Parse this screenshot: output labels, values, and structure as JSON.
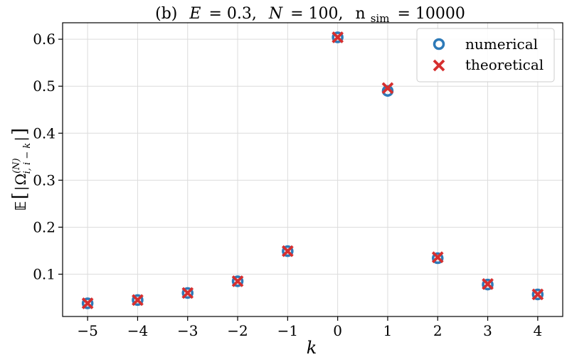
{
  "chart_data": {
    "type": "scatter",
    "title": "(b)  E = 0.3,  N = 100,  n_sim = 10000",
    "title_parts": {
      "prefix": "(b)",
      "E_symbol": "E",
      "E_value": "= 0.3,",
      "N_symbol": "N",
      "N_value": "= 100,",
      "nsim_base": "n",
      "nsim_sub": "sim",
      "nsim_value": "= 10000"
    },
    "xlabel": "k",
    "ylabel": "𝔼[ |Ω_{i, i−k}^{(N)}| ]",
    "xlim": [
      -5.5,
      4.5
    ],
    "ylim": [
      0.01,
      0.635
    ],
    "x_ticks": [
      -5,
      -4,
      -3,
      -2,
      -1,
      0,
      1,
      2,
      3,
      4
    ],
    "x_tick_labels": [
      "−5",
      "−4",
      "−3",
      "−2",
      "−1",
      "0",
      "1",
      "2",
      "3",
      "4"
    ],
    "y_ticks": [
      0.1,
      0.2,
      0.3,
      0.4,
      0.5,
      0.6
    ],
    "y_tick_labels": [
      "0.1",
      "0.2",
      "0.3",
      "0.4",
      "0.5",
      "0.6"
    ],
    "grid": true,
    "legend_position": "top-right",
    "series": [
      {
        "name": "numerical",
        "marker": "circle-open",
        "color": "#2e7ab8",
        "x": [
          -5,
          -4,
          -3,
          -2,
          -1,
          0,
          1,
          2,
          3,
          4
        ],
        "y": [
          0.038,
          0.045,
          0.06,
          0.085,
          0.149,
          0.604,
          0.49,
          0.134,
          0.078,
          0.057
        ]
      },
      {
        "name": "theoretical",
        "marker": "x",
        "color": "#d62f2f",
        "x": [
          -5,
          -4,
          -3,
          -2,
          -1,
          0,
          1,
          2,
          3,
          4
        ],
        "y": [
          0.038,
          0.045,
          0.06,
          0.085,
          0.149,
          0.604,
          0.496,
          0.136,
          0.079,
          0.057
        ]
      }
    ]
  }
}
